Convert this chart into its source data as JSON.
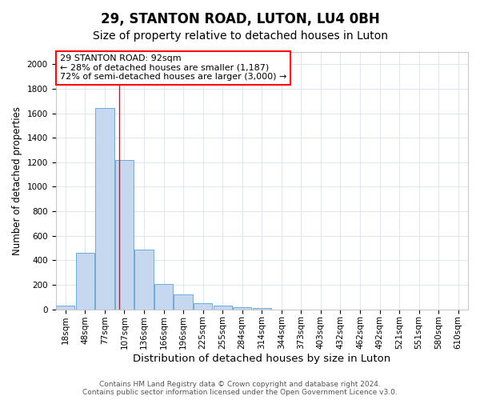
{
  "title": "29, STANTON ROAD, LUTON, LU4 0BH",
  "subtitle": "Size of property relative to detached houses in Luton",
  "xlabel": "Distribution of detached houses by size in Luton",
  "ylabel": "Number of detached properties",
  "categories": [
    "18sqm",
    "48sqm",
    "77sqm",
    "107sqm",
    "136sqm",
    "166sqm",
    "196sqm",
    "225sqm",
    "255sqm",
    "284sqm",
    "314sqm",
    "344sqm",
    "373sqm",
    "403sqm",
    "432sqm",
    "462sqm",
    "492sqm",
    "521sqm",
    "551sqm",
    "580sqm",
    "610sqm"
  ],
  "values": [
    30,
    460,
    1640,
    1220,
    490,
    210,
    120,
    50,
    30,
    20,
    10,
    0,
    0,
    0,
    0,
    0,
    0,
    0,
    0,
    0,
    0
  ],
  "bar_color": "#c5d8f0",
  "bar_edge_color": "#5a9fd4",
  "bar_edge_width": 0.6,
  "red_line_x": 2.73,
  "annotation_text": "29 STANTON ROAD: 92sqm\n← 28% of detached houses are smaller (1,187)\n72% of semi-detached houses are larger (3,000) →",
  "annotation_box_color": "white",
  "annotation_box_edge_color": "red",
  "ylim": [
    0,
    2100
  ],
  "yticks": [
    0,
    200,
    400,
    600,
    800,
    1000,
    1200,
    1400,
    1600,
    1800,
    2000
  ],
  "grid_color": "#dde4f0",
  "background_color": "white",
  "footer": "Contains HM Land Registry data © Crown copyright and database right 2024.\nContains public sector information licensed under the Open Government Licence v3.0.",
  "title_fontsize": 12,
  "subtitle_fontsize": 10,
  "xlabel_fontsize": 9.5,
  "ylabel_fontsize": 8.5,
  "tick_fontsize": 7.5,
  "footer_fontsize": 6.5,
  "annotation_fontsize": 8
}
